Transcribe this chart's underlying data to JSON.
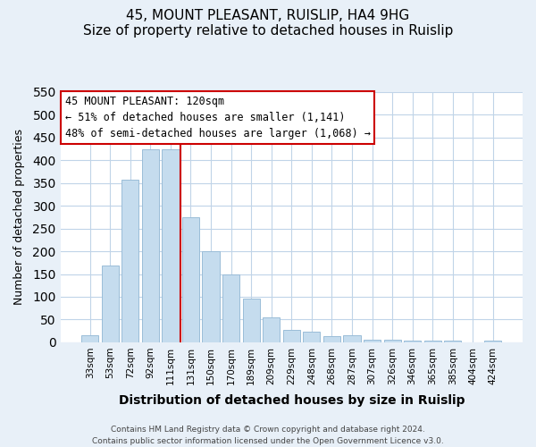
{
  "title": "45, MOUNT PLEASANT, RUISLIP, HA4 9HG",
  "subtitle": "Size of property relative to detached houses in Ruislip",
  "xlabel": "Distribution of detached houses by size in Ruislip",
  "ylabel": "Number of detached properties",
  "bar_labels": [
    "33sqm",
    "53sqm",
    "72sqm",
    "92sqm",
    "111sqm",
    "131sqm",
    "150sqm",
    "170sqm",
    "189sqm",
    "209sqm",
    "229sqm",
    "248sqm",
    "268sqm",
    "287sqm",
    "307sqm",
    "326sqm",
    "346sqm",
    "365sqm",
    "385sqm",
    "404sqm",
    "424sqm"
  ],
  "bar_values": [
    15,
    168,
    357,
    425,
    425,
    275,
    200,
    150,
    97,
    55,
    28,
    23,
    13,
    15,
    5,
    5,
    3,
    3,
    3,
    0,
    3
  ],
  "bar_color": "#c5dcee",
  "bar_edge_color": "#9abdd8",
  "vline_x": 4.5,
  "vline_color": "#cc0000",
  "ylim": [
    0,
    550
  ],
  "yticks": [
    0,
    50,
    100,
    150,
    200,
    250,
    300,
    350,
    400,
    450,
    500,
    550
  ],
  "annotation_title": "45 MOUNT PLEASANT: 120sqm",
  "annotation_line1": "← 51% of detached houses are smaller (1,141)",
  "annotation_line2": "48% of semi-detached houses are larger (1,068) →",
  "footnote1": "Contains HM Land Registry data © Crown copyright and database right 2024.",
  "footnote2": "Contains public sector information licensed under the Open Government Licence v3.0.",
  "bg_color": "#e8f0f8",
  "plot_bg_color": "#ffffff",
  "grid_color": "#c0d4e8",
  "box_color": "#cc0000",
  "title_fontsize": 11,
  "xlabel_fontsize": 10,
  "ylabel_fontsize": 9,
  "tick_fontsize": 7.5,
  "annot_fontsize": 8.5,
  "footnote_fontsize": 6.5
}
